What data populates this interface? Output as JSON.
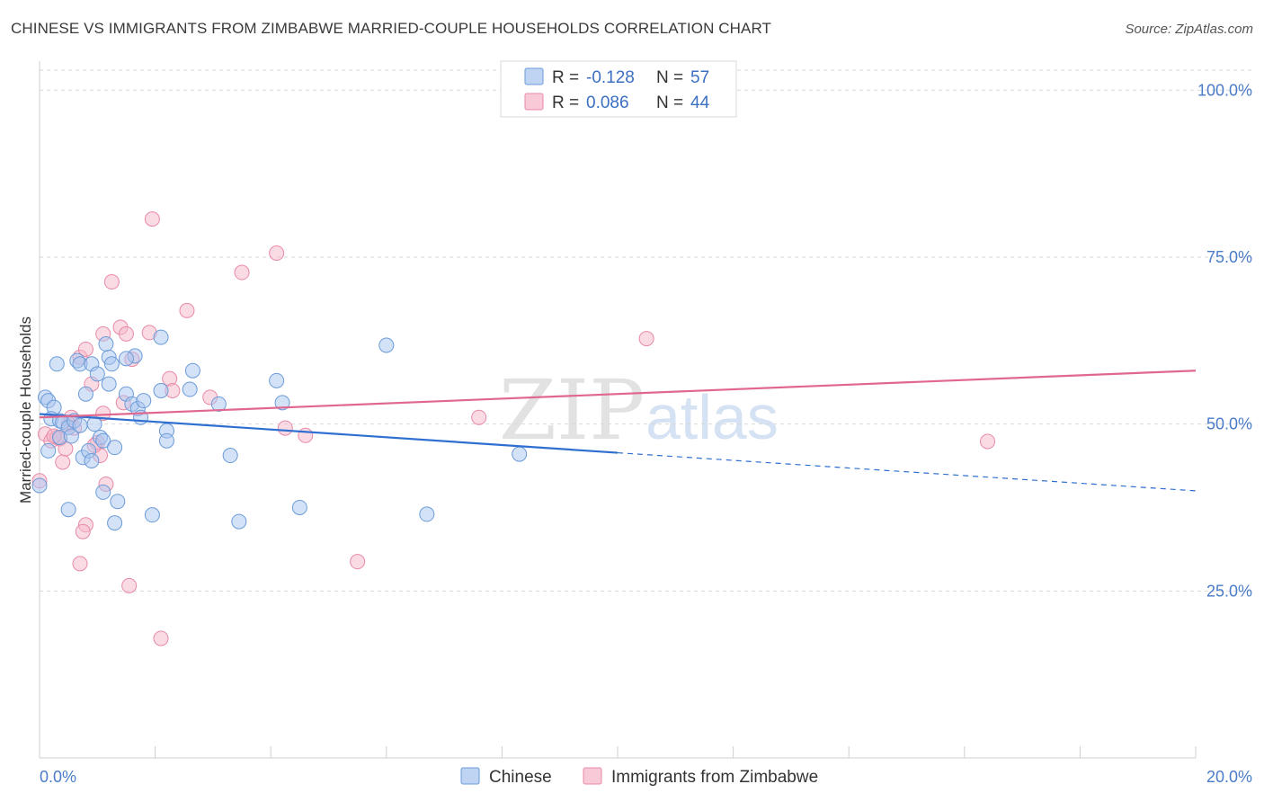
{
  "header": {
    "title": "CHINESE VS IMMIGRANTS FROM ZIMBABWE MARRIED-COUPLE HOUSEHOLDS CORRELATION CHART",
    "source": "Source: ZipAtlas.com"
  },
  "watermark": {
    "zip": "ZIP",
    "atlas": "atlas"
  },
  "colors": {
    "chinese_fill": "#a9c6ef",
    "chinese_stroke": "#6b9bd8",
    "chinese_line": "#2f6fd0",
    "zimbabwe_fill": "#f5b8ca",
    "zimbabwe_stroke": "#e88aa8",
    "zimbabwe_line": "#e06890",
    "tick_label": "#4a7cc7",
    "grid": "#d9d9d9"
  },
  "legend": {
    "rows": [
      {
        "r_label": "R =",
        "r_value": "-0.128",
        "n_label": "N =",
        "n_value": "57"
      },
      {
        "r_label": "R =",
        "r_value": "0.086",
        "n_label": "N =",
        "n_value": "44"
      }
    ]
  },
  "chart_data": {
    "type": "scatter",
    "title": "CHINESE VS IMMIGRANTS FROM ZIMBABWE MARRIED-COUPLE HOUSEHOLDS CORRELATION CHART",
    "xlabel": "",
    "ylabel": "Married-couple Households",
    "xlim": [
      0,
      20
    ],
    "ylim": [
      0,
      103
    ],
    "x_tick_labels": [
      "0.0%",
      "20.0%"
    ],
    "y_ticks": [
      25,
      50,
      75,
      100
    ],
    "y_tick_labels": [
      "25.0%",
      "50.0%",
      "75.0%",
      "100.0%"
    ],
    "grid": true,
    "legend_position": "top-center",
    "series": [
      {
        "name": "Chinese",
        "r": -0.128,
        "n": 57,
        "trend": {
          "x0": 0.0,
          "y0": 51.5,
          "x1": 10.0,
          "y1": 45.7,
          "dash_to_x": 20.0,
          "dash_to_y": 40.0
        },
        "points": [
          [
            0.1,
            54
          ],
          [
            0.15,
            53.5
          ],
          [
            0.25,
            52.5
          ],
          [
            0.2,
            50.8
          ],
          [
            0.35,
            50.5
          ],
          [
            0.4,
            50.3
          ],
          [
            0.5,
            49.5
          ],
          [
            0.6,
            50.5
          ],
          [
            0.7,
            49.8
          ],
          [
            0.3,
            59
          ],
          [
            0.65,
            59.5
          ],
          [
            0.7,
            59
          ],
          [
            0.9,
            59
          ],
          [
            1.0,
            57.5
          ],
          [
            1.2,
            60
          ],
          [
            1.25,
            59
          ],
          [
            0.8,
            54.5
          ],
          [
            1.2,
            56
          ],
          [
            0.75,
            45
          ],
          [
            0.85,
            46
          ],
          [
            0.9,
            44.5
          ],
          [
            1.05,
            48
          ],
          [
            1.1,
            47.5
          ],
          [
            1.3,
            46.5
          ],
          [
            1.5,
            54.5
          ],
          [
            1.6,
            53
          ],
          [
            1.7,
            52.3
          ],
          [
            1.75,
            51
          ],
          [
            1.8,
            53.5
          ],
          [
            2.1,
            55
          ],
          [
            2.2,
            49
          ],
          [
            2.2,
            47.5
          ],
          [
            2.6,
            55.2
          ],
          [
            2.65,
            58
          ],
          [
            3.1,
            53
          ],
          [
            3.3,
            45.3
          ],
          [
            2.1,
            63
          ],
          [
            1.65,
            60.2
          ],
          [
            1.15,
            62
          ],
          [
            1.5,
            59.8
          ],
          [
            4.1,
            56.5
          ],
          [
            4.2,
            53.2
          ],
          [
            6.0,
            61.8
          ],
          [
            0.5,
            37.2
          ],
          [
            1.1,
            39.8
          ],
          [
            1.35,
            38.4
          ],
          [
            1.3,
            35.2
          ],
          [
            1.95,
            36.4
          ],
          [
            3.45,
            35.4
          ],
          [
            4.5,
            37.5
          ],
          [
            6.7,
            36.5
          ],
          [
            8.3,
            45.5
          ],
          [
            0.0,
            40.8
          ],
          [
            0.15,
            46
          ],
          [
            0.35,
            48
          ],
          [
            0.55,
            48.2
          ],
          [
            0.95,
            50
          ]
        ]
      },
      {
        "name": "Immigrants from Zimbabwe",
        "r": 0.086,
        "n": 44,
        "trend": {
          "x0": 0.0,
          "y0": 51.0,
          "x1": 20.0,
          "y1": 58.0
        },
        "points": [
          [
            0.1,
            48.5
          ],
          [
            0.2,
            47.5
          ],
          [
            0.3,
            48
          ],
          [
            0.35,
            47.8
          ],
          [
            0.4,
            44.3
          ],
          [
            0.45,
            46.3
          ],
          [
            0.55,
            51
          ],
          [
            0.6,
            49.4
          ],
          [
            0.7,
            60
          ],
          [
            0.8,
            61.2
          ],
          [
            0.9,
            56
          ],
          [
            1.0,
            47.2
          ],
          [
            1.05,
            45.3
          ],
          [
            1.1,
            51.6
          ],
          [
            1.1,
            63.5
          ],
          [
            1.25,
            71.3
          ],
          [
            1.4,
            64.5
          ],
          [
            1.45,
            53.2
          ],
          [
            1.5,
            63.5
          ],
          [
            1.6,
            59.7
          ],
          [
            1.9,
            63.7
          ],
          [
            1.95,
            80.7
          ],
          [
            2.25,
            56.8
          ],
          [
            2.3,
            55
          ],
          [
            2.55,
            67
          ],
          [
            2.95,
            54
          ],
          [
            3.5,
            72.7
          ],
          [
            4.1,
            75.6
          ],
          [
            4.25,
            49.4
          ],
          [
            4.6,
            48.3
          ],
          [
            7.6,
            51
          ],
          [
            10.5,
            62.8
          ],
          [
            16.4,
            47.4
          ],
          [
            0.8,
            34.9
          ],
          [
            0.75,
            33.9
          ],
          [
            0.7,
            29.1
          ],
          [
            1.15,
            41
          ],
          [
            1.55,
            25.8
          ],
          [
            2.1,
            17.9
          ],
          [
            5.5,
            29.4
          ],
          [
            0.0,
            41.5
          ],
          [
            0.25,
            48.2
          ],
          [
            0.5,
            50
          ],
          [
            0.95,
            46.8
          ]
        ]
      }
    ]
  },
  "bottom_legend": {
    "items": [
      {
        "label": "Chinese"
      },
      {
        "label": "Immigrants from Zimbabwe"
      }
    ]
  }
}
